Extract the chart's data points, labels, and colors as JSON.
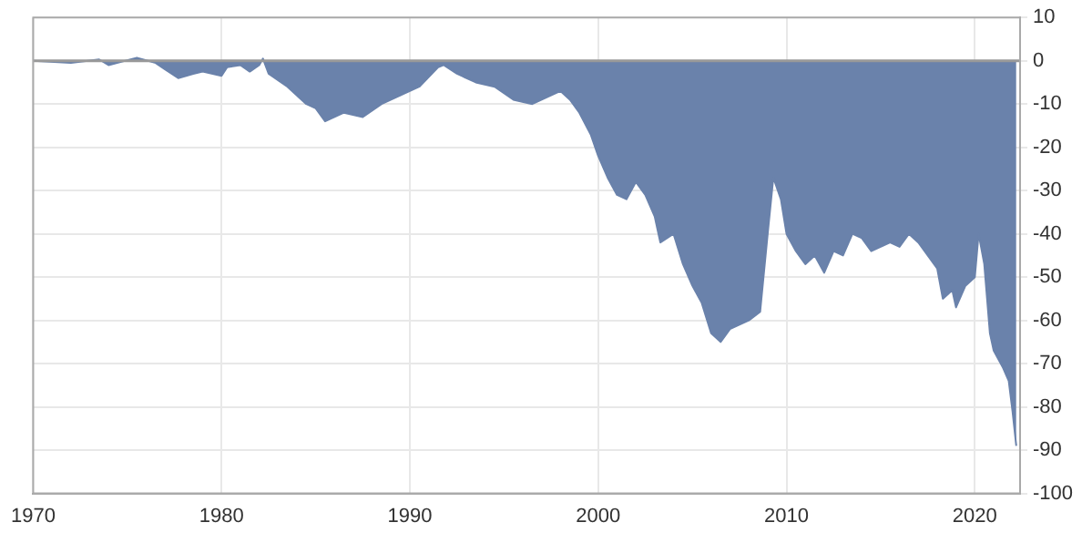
{
  "chart_data": {
    "type": "area",
    "x": [
      1970,
      1972,
      1973.5,
      1974,
      1975.5,
      1976.5,
      1977,
      1977.7,
      1978.5,
      1979,
      1980,
      1980.3,
      1981,
      1981.5,
      1982,
      1982.2,
      1982.5,
      1983.5,
      1984.5,
      1985,
      1985.5,
      1986.5,
      1987.5,
      1988.5,
      1989.5,
      1990.5,
      1991.5,
      1991.8,
      1992.5,
      1993.5,
      1994.5,
      1995.5,
      1996.5,
      1997.5,
      1998,
      1998.5,
      1999,
      1999.6,
      2000,
      2000.5,
      2001,
      2001.5,
      2002,
      2002.5,
      2003,
      2003.3,
      2004,
      2004.5,
      2005,
      2005.5,
      2006,
      2006.5,
      2007,
      2008,
      2008.6,
      2009,
      2009.3,
      2009.7,
      2010,
      2010.5,
      2011,
      2011.5,
      2012,
      2012.5,
      2013,
      2013.5,
      2014,
      2014.5,
      2015,
      2015.5,
      2016,
      2016.5,
      2017,
      2017.5,
      2018,
      2018.3,
      2018.8,
      2019,
      2019.5,
      2020,
      2020.2,
      2020.5,
      2020.8,
      2021,
      2021.5,
      2021.8,
      2022,
      2022.2
    ],
    "series": [
      {
        "color": "#6a82ab",
        "values": [
          0,
          -0.5,
          0.3,
          -1,
          0.7,
          -0.5,
          -2,
          -4,
          -3,
          -2.5,
          -3.5,
          -1.5,
          -1,
          -2.5,
          -1,
          0.5,
          -3,
          -6,
          -10,
          -11,
          -14,
          -12,
          -13,
          -10,
          -8,
          -6,
          -1.5,
          -1,
          -3,
          -5,
          -6,
          -9,
          -10,
          -8,
          -7,
          -9,
          -12,
          -17,
          -22,
          -27,
          -31,
          -32,
          -28,
          -31,
          -36,
          -42,
          -40,
          -47,
          -52,
          -56,
          -63,
          -65,
          -62,
          -60,
          -58,
          -40,
          -27,
          -32,
          -40,
          -44,
          -47,
          -45,
          -49,
          -44,
          -45,
          -40,
          -41,
          -44,
          -43,
          -42,
          -43,
          -40,
          -42,
          -45,
          -48,
          -55,
          -53,
          -57,
          -52,
          -50,
          -40,
          -47,
          -63,
          -67,
          -71,
          -74,
          -81,
          -89
        ]
      }
    ],
    "xlim": [
      1970,
      2022.4
    ],
    "xticks": [
      1970,
      1980,
      1990,
      2000,
      2010,
      2020
    ],
    "ylim": [
      -100,
      10
    ],
    "yticks": [
      -100,
      -90,
      -80,
      -70,
      -60,
      -50,
      -40,
      -30,
      -20,
      -10,
      0,
      10
    ],
    "ref_lines": [
      {
        "axis": "y",
        "value": 0,
        "color": "#999999"
      }
    ],
    "grid": true,
    "legend": false
  }
}
